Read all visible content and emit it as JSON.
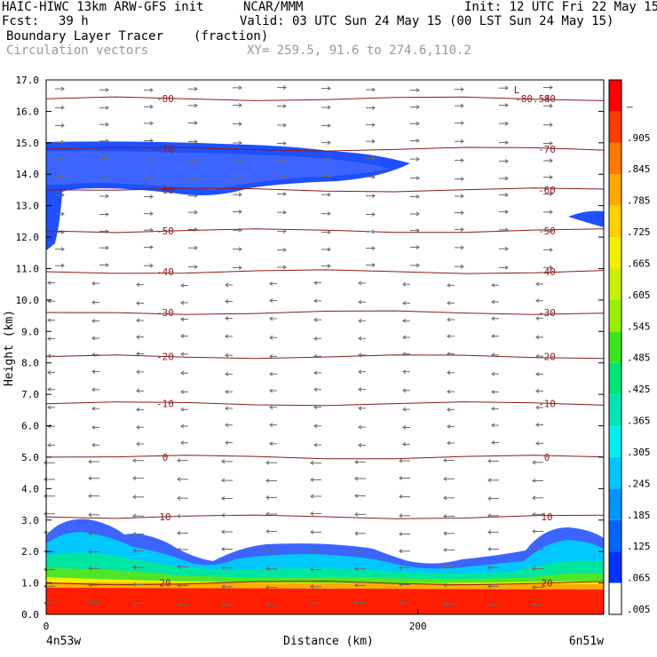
{
  "header": {
    "model": "HAIC-HIWC 13km ARW-GFS init",
    "org": "NCAR/MMM",
    "init": "Init: 12 UTC Fri 22 May 15",
    "fcst_label": "Fcst:",
    "fcst_value": "39 h",
    "valid": "Valid: 03 UTC Sun 24 May 15 (00 LST Sun 24 May 15)",
    "field": "Boundary Layer Tracer",
    "units": "(fraction)",
    "vectors": "Circulation vectors",
    "xy": "XY= 259.5, 91.6 to 274.6,110.2"
  },
  "chart_data": {
    "type": "heatmap",
    "xlabel": "Distance (km)",
    "ylabel": "Height (km)",
    "x_ticks": [
      "0",
      "200"
    ],
    "x_start_label": "4n53w",
    "x_end_label": "6n51w",
    "xlim": [
      0,
      300
    ],
    "ylim": [
      0,
      17
    ],
    "y_ticks": [
      "0.0",
      "1.0",
      "2.0",
      "3.0",
      "4.0",
      "5.0",
      "6.0",
      "7.0",
      "8.0",
      "9.0",
      "10.0",
      "11.0",
      "12.0",
      "13.0",
      "14.0",
      "15.0",
      "16.0",
      "17.0"
    ],
    "colorbar": {
      "labels": [
        ".005",
        ".065",
        ".125",
        ".185",
        ".245",
        ".305",
        ".365",
        ".425",
        ".485",
        ".545",
        ".605",
        ".665",
        ".725",
        ".785",
        ".845",
        ".905",
        "–"
      ],
      "colors": [
        "#ffffff",
        "#0032ff",
        "#0064ff",
        "#0096ff",
        "#00c8ff",
        "#00f0f0",
        "#00e6b4",
        "#00e678",
        "#3ce61e",
        "#96f000",
        "#c8f000",
        "#f0f000",
        "#ffd200",
        "#ffaa00",
        "#ff7800",
        "#ff3c00",
        "#ff0000"
      ]
    },
    "temperature_contours_c": [
      {
        "label": "20",
        "height_km": 1.0
      },
      {
        "label": "10",
        "height_km": 3.1
      },
      {
        "label": "0",
        "height_km": 5.0
      },
      {
        "label": "-10",
        "height_km": 6.7
      },
      {
        "label": "-20",
        "height_km": 8.2
      },
      {
        "label": "-30",
        "height_km": 9.6
      },
      {
        "label": "-40",
        "height_km": 10.9
      },
      {
        "label": "-50",
        "height_km": 12.2
      },
      {
        "label": "-60",
        "height_km": 13.5
      },
      {
        "label": "-70",
        "height_km": 14.8
      },
      {
        "label": "-80",
        "height_km": 16.4
      }
    ],
    "extra_labels": [
      "-80.54",
      "L"
    ]
  }
}
